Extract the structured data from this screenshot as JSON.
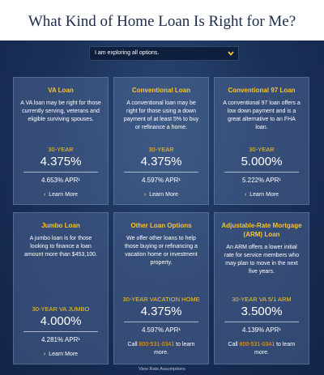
{
  "header": {
    "title": "What Kind of Home Loan Is Right for Me?"
  },
  "dropdown": {
    "label": "I am exploring all options."
  },
  "cards": [
    {
      "title": "VA Loan",
      "description": "A VA loan may be right for those currently serving, veterans and eligible surviving spouses.",
      "term": "30-YEAR",
      "rate": "4.375%",
      "apr": "4.653% APR¹",
      "link": "Learn More"
    },
    {
      "title": "Conventional Loan",
      "description": "A conventional loan may be right for those using a down payment of at least 5% to buy or refinance a home.",
      "term": "30-YEAR",
      "rate": "4.375%",
      "apr": "4.597% APR¹",
      "link": "Learn More"
    },
    {
      "title": "Conventional 97 Loan",
      "description": "A conventional 97 loan offers a low down payment and is a great alternative to an FHA loan.",
      "term": "30-YEAR",
      "rate": "5.000%",
      "apr": "5.222% APR¹",
      "link": "Learn More"
    },
    {
      "title": "Jumbo Loan",
      "description": "A jumbo loan is for those looking to finance a loan amount more than $453,100.",
      "term": "30-YEAR VA JUMBO",
      "rate": "4.000%",
      "apr": "4.281% APR¹",
      "link": "Learn More"
    },
    {
      "title": "Other Loan Options",
      "description": "We offer other loans to help those buying or refinancing a vacation home or investment property.",
      "term": "30-YEAR VACATION HOME",
      "rate": "4.375%",
      "apr": "4.597% APR¹",
      "call_prefix": "Call",
      "phone": "800-531-0341",
      "call_suffix": "to learn more."
    },
    {
      "title": "Adjustable-Rate Mortgage (ARM) Loan",
      "description": "An ARM offers a lower initial rate for service members who may plan to move in the next five years.",
      "term": "30-YEAR VA 5/1 ARM",
      "rate": "3.500%",
      "apr": "4.139% APR¹",
      "call_prefix": "Call",
      "phone": "800-531-0341",
      "call_suffix": "to learn more."
    }
  ],
  "footer": {
    "link": "View Rate Assumptions"
  }
}
